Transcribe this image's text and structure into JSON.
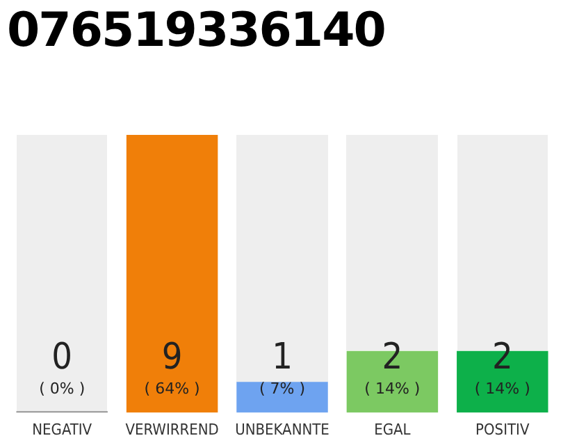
{
  "chart_data": {
    "type": "bar",
    "title": "076519336140",
    "categories": [
      "NEGATIV",
      "VERWIRREND",
      "UNBEKANNTE",
      "EGAL",
      "POSITIV"
    ],
    "values": [
      0,
      9,
      1,
      2,
      2
    ],
    "colors": [
      "#888888",
      "#f07f09",
      "#6ea3f0",
      "#7cc962",
      "#0db04a"
    ],
    "data_labels": true,
    "annotations": [
      "( 0% )",
      "( 64% )",
      "( 7% )",
      "( 14% )",
      "( 14% )"
    ],
    "grid": false,
    "legend": false
  }
}
